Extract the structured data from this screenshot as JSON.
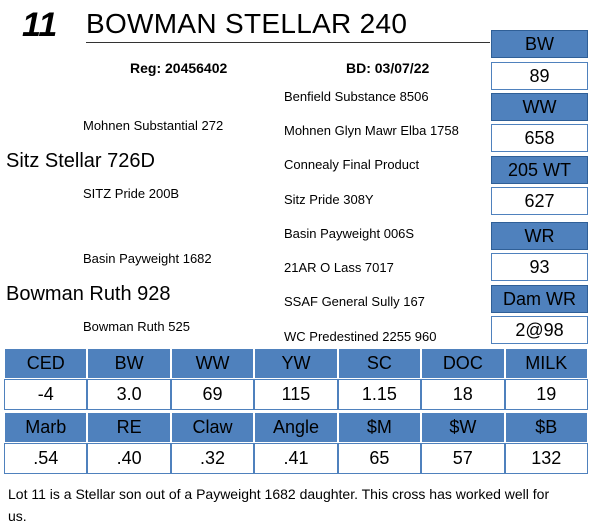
{
  "header": {
    "lot_number": "11",
    "title": "BOWMAN STELLAR 240",
    "reg": "Reg: 20456402",
    "bd": "BD: 03/07/22"
  },
  "pedigree": {
    "sire": "Sitz Stellar 726D",
    "sire_sire": "Mohnen Substantial 272",
    "sire_dam": "SITZ Pride 200B",
    "dam": "Bowman Ruth 928",
    "dam_sire": "Basin Payweight 1682",
    "dam_dam": "Bowman Ruth 525",
    "g3": [
      "Benfield Substance 8506",
      "Mohnen Glyn Mawr Elba 1758",
      "Connealy Final Product",
      "Sitz Pride 308Y",
      "Basin Payweight 006S",
      "21AR O Lass 7017",
      "SSAF General Sully 167",
      "WC Predestined 2255 960"
    ]
  },
  "side_stats": [
    {
      "label": "BW",
      "value": "89"
    },
    {
      "label": "WW",
      "value": "658"
    },
    {
      "label": "205 WT",
      "value": "627"
    },
    {
      "label": "WR",
      "value": "93"
    },
    {
      "label": "Dam WR",
      "value": "2@98"
    }
  ],
  "epd_row1": {
    "headers": [
      "CED",
      "BW",
      "WW",
      "YW",
      "SC",
      "DOC",
      "MILK"
    ],
    "values": [
      "-4",
      "3.0",
      "69",
      "115",
      "1.15",
      "18",
      "19"
    ]
  },
  "epd_row2": {
    "headers": [
      "Marb",
      "RE",
      "Claw",
      "Angle",
      "$M",
      "$W",
      "$B"
    ],
    "values": [
      ".54",
      ".40",
      ".32",
      ".41",
      "65",
      "57",
      "132"
    ]
  },
  "note": "Lot 11 is a Stellar son out of a Payweight 1682 daughter.  This cross has worked well for us.",
  "colors": {
    "accent": "#4f81bd"
  }
}
